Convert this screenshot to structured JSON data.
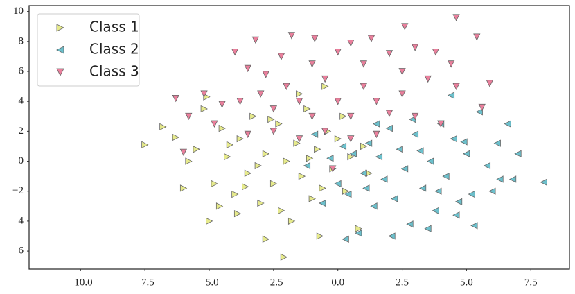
{
  "chart_data": {
    "type": "scatter",
    "xlim": [
      -12,
      9
    ],
    "ylim": [
      -7.2,
      10.4
    ],
    "xticks": [
      {
        "value": -10,
        "label": "−10.0"
      },
      {
        "value": -7.5,
        "label": "−7.5"
      },
      {
        "value": -5,
        "label": "−5.0"
      },
      {
        "value": -2.5,
        "label": "−2.5"
      },
      {
        "value": 0,
        "label": "0.0"
      },
      2.5,
      {
        "value": 5,
        "label": "5.0"
      },
      7.5
    ],
    "yticks": [
      {
        "value": -6,
        "label": "−6"
      },
      {
        "value": -4,
        "label": "−4"
      },
      {
        "value": -2,
        "label": "−2"
      },
      0,
      2,
      4,
      6,
      8,
      10
    ],
    "grid": false,
    "legend": "upper left",
    "series": [
      {
        "name": "Class 1",
        "color": "#e6ea8c",
        "marker": "triangle-right",
        "x": [
          -7.5,
          -6.8,
          -6.3,
          -6,
          -5.5,
          -5.2,
          -5,
          -4.8,
          -4.5,
          -4.3,
          -4,
          -3.8,
          -3.5,
          -3.3,
          -3,
          -2.8,
          -2.5,
          -2.3,
          -2.2,
          -2,
          -1.8,
          -1.6,
          -1.4,
          -1.2,
          -1,
          -0.8,
          -0.6,
          -0.4,
          -0.2,
          0,
          0.3,
          0.5,
          0.8,
          1,
          -2.1,
          -2.8,
          -0.7,
          -3.1,
          -4.6,
          -5.8,
          -1.5,
          -0.5,
          -2.6,
          -3.6,
          -1.1,
          1.2,
          0.2,
          -4.2,
          -5.1,
          -3.9
        ],
        "y": [
          1.1,
          2.3,
          1.6,
          -1.8,
          0.8,
          3.5,
          -4,
          -1.5,
          2.2,
          0.3,
          -2.2,
          1.5,
          -0.8,
          3,
          -2.8,
          0.5,
          -1.5,
          2.5,
          -3.3,
          0,
          -4,
          1.2,
          -1,
          3.5,
          -2.5,
          0.8,
          -1.8,
          2,
          -0.5,
          1.5,
          -2,
          0.3,
          -4.5,
          1,
          -6.4,
          -5.2,
          -5,
          -0.3,
          -3,
          0,
          4.5,
          5,
          2.8,
          -1.7,
          0.2,
          -0.8,
          3,
          1.1,
          4.3,
          -3.5
        ]
      },
      {
        "name": "Class 2",
        "color": "#6cc0cc",
        "marker": "triangle-left",
        "x": [
          8,
          6.6,
          6.3,
          6,
          5.5,
          5.3,
          5,
          4.7,
          4.5,
          4.2,
          4,
          3.8,
          3.6,
          3.3,
          3,
          2.8,
          2.6,
          2.4,
          2.2,
          2,
          1.8,
          1.6,
          1.4,
          1.2,
          1,
          0.8,
          0.6,
          0.4,
          0.2,
          0,
          -0.3,
          -0.6,
          -0.9,
          0.3,
          4.4,
          3.5,
          5.8,
          6.8,
          7,
          4.9,
          2.9,
          1.5,
          3.9,
          5.2,
          2.1,
          6.2,
          -1.2,
          1.1,
          3.2,
          4.6
        ],
        "y": [
          -1.4,
          2.5,
          -1.2,
          -2,
          3.3,
          -4.3,
          0.5,
          -2.7,
          1.5,
          -1,
          2.5,
          -3.3,
          0,
          -1.8,
          1.8,
          -4.2,
          -0.5,
          0.8,
          -2.5,
          2.2,
          -1.2,
          0.3,
          -3,
          1.2,
          -0.8,
          -4.8,
          0.5,
          -2.2,
          1,
          -1.5,
          0.2,
          -2.8,
          1.8,
          -5.2,
          4.4,
          -4.5,
          -0.3,
          -1.2,
          0.5,
          1.3,
          2.8,
          2.5,
          -2,
          -2.2,
          -5,
          1.2,
          -0.3,
          -1.8,
          0.7,
          -3.6
        ]
      },
      {
        "name": "Class 3",
        "color": "#ea7f9c",
        "marker": "triangle-down",
        "x": [
          4.6,
          5.4,
          2.6,
          -1.8,
          -3.2,
          -0.9,
          1.3,
          0.5,
          -4,
          -2.2,
          0,
          2,
          3,
          3.8,
          -3.5,
          -1,
          1,
          2.5,
          4.4,
          5.9,
          -6.3,
          -5.2,
          -4.5,
          -3.8,
          -3,
          -2.5,
          -2,
          -1.5,
          -1,
          -0.5,
          0,
          0.5,
          1,
          1.5,
          2,
          2.5,
          3,
          3.5,
          4,
          5.6,
          -5.8,
          -4.8,
          -3.5,
          -2.5,
          -1.5,
          -0.5,
          0.5,
          1.5,
          -6,
          -0.2,
          4.6,
          -2.8
        ],
        "y": [
          9.6,
          8.3,
          9,
          8.4,
          8.1,
          8.2,
          8.2,
          7.9,
          7.3,
          7,
          7.3,
          7.2,
          7.6,
          7.3,
          6.2,
          6.5,
          6.5,
          6,
          6.5,
          5.2,
          4.2,
          4.5,
          3.8,
          4,
          4.5,
          3.5,
          5,
          4,
          3,
          5.5,
          4,
          3,
          5,
          4,
          3.2,
          4.5,
          3,
          5.5,
          2.5,
          3.6,
          3,
          2.5,
          1.8,
          2,
          1.5,
          2,
          1.5,
          1.8,
          0.6,
          -0.5,
          5,
          5.8
        ]
      }
    ]
  }
}
